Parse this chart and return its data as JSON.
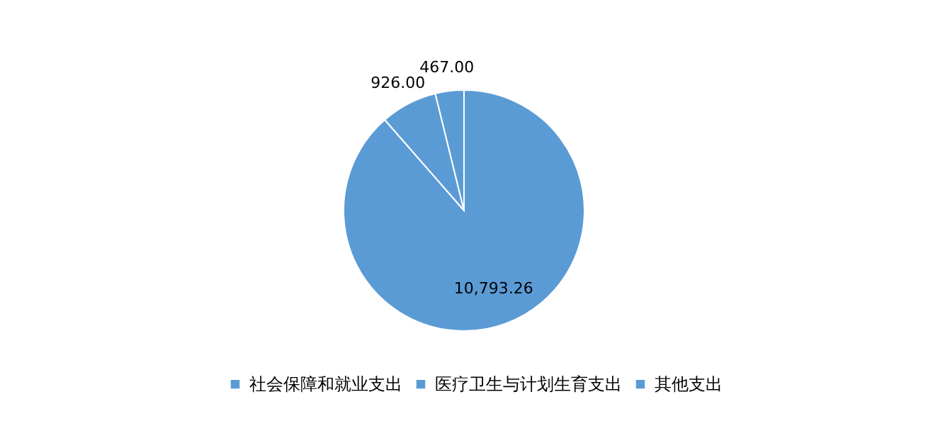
{
  "chart_data": {
    "type": "pie",
    "categories": [
      "社会保障和就业支出",
      "医疗卫生与计划生育支出",
      "其他支出"
    ],
    "values": [
      10793.26,
      926.0,
      467.0
    ],
    "value_labels": [
      "10,793.26",
      "926.00",
      "467.00"
    ],
    "colors": [
      "#5b9bd5",
      "#5b9bd5",
      "#5b9bd5"
    ],
    "legend": "bottom"
  }
}
